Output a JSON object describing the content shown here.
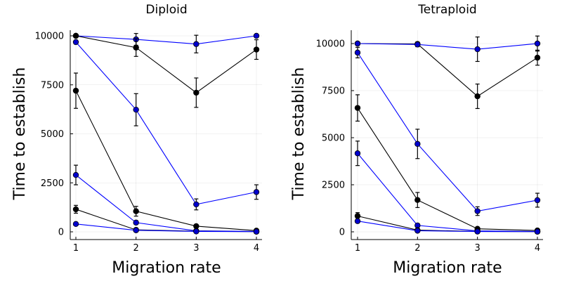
{
  "chart_data": [
    {
      "type": "line",
      "title": "Diploid",
      "xlabel": "Migration rate",
      "ylabel": "Time to establish",
      "xlim": [
        1,
        4
      ],
      "ylim": [
        0,
        10000
      ],
      "xticks": [
        1,
        2,
        3,
        4
      ],
      "yticks": [
        0,
        2500,
        5000,
        7500,
        10000
      ],
      "grid": true,
      "x": [
        1,
        2,
        3,
        4
      ],
      "series": [
        {
          "color": "#0000ff",
          "values": [
            10000,
            9820,
            9580,
            10000
          ],
          "errors": [
            0,
            300,
            450,
            0
          ]
        },
        {
          "color": "#000000",
          "values": [
            10000,
            9400,
            7100,
            9300
          ],
          "errors": [
            0,
            450,
            750,
            500
          ]
        },
        {
          "color": "#0000ff",
          "values": [
            9680,
            6230,
            1400,
            2030
          ],
          "errors": [
            100,
            820,
            280,
            370
          ]
        },
        {
          "color": "#000000",
          "values": [
            7200,
            1050,
            290,
            60
          ],
          "errors": [
            900,
            250,
            60,
            30
          ]
        },
        {
          "color": "#0000ff",
          "values": [
            2900,
            470,
            50,
            20
          ],
          "errors": [
            500,
            90,
            30,
            10
          ]
        },
        {
          "color": "#000000",
          "values": [
            1150,
            100,
            30,
            10
          ],
          "errors": [
            200,
            40,
            10,
            5
          ]
        },
        {
          "color": "#0000ff",
          "values": [
            400,
            80,
            20,
            10
          ],
          "errors": [
            50,
            20,
            5,
            5
          ]
        }
      ]
    },
    {
      "type": "line",
      "title": "Tetraploid",
      "xlabel": "Migration rate",
      "ylabel": "Time to establish",
      "xlim": [
        1,
        4
      ],
      "ylim": [
        0,
        10000
      ],
      "xticks": [
        1,
        2,
        3,
        4
      ],
      "yticks": [
        0,
        2500,
        5000,
        7500,
        10000
      ],
      "grid": true,
      "x": [
        1,
        2,
        3,
        4
      ],
      "series": [
        {
          "color": "#000000",
          "values": [
            10000,
            9980,
            7200,
            9250
          ],
          "errors": [
            0,
            100,
            650,
            400
          ]
        },
        {
          "color": "#0000ff",
          "values": [
            10000,
            9950,
            9700,
            10000
          ],
          "errors": [
            0,
            120,
            650,
            400
          ]
        },
        {
          "color": "#0000ff",
          "values": [
            9520,
            4670,
            1100,
            1680
          ],
          "errors": [
            280,
            780,
            230,
            370
          ]
        },
        {
          "color": "#000000",
          "values": [
            6580,
            1690,
            160,
            70
          ],
          "errors": [
            700,
            400,
            60,
            30
          ]
        },
        {
          "color": "#0000ff",
          "values": [
            4170,
            340,
            50,
            20
          ],
          "errors": [
            650,
            90,
            20,
            10
          ]
        },
        {
          "color": "#000000",
          "values": [
            840,
            90,
            20,
            10
          ],
          "errors": [
            180,
            40,
            10,
            5
          ]
        },
        {
          "color": "#0000ff",
          "values": [
            570,
            60,
            15,
            10
          ],
          "errors": [
            80,
            20,
            5,
            5
          ]
        }
      ]
    }
  ]
}
